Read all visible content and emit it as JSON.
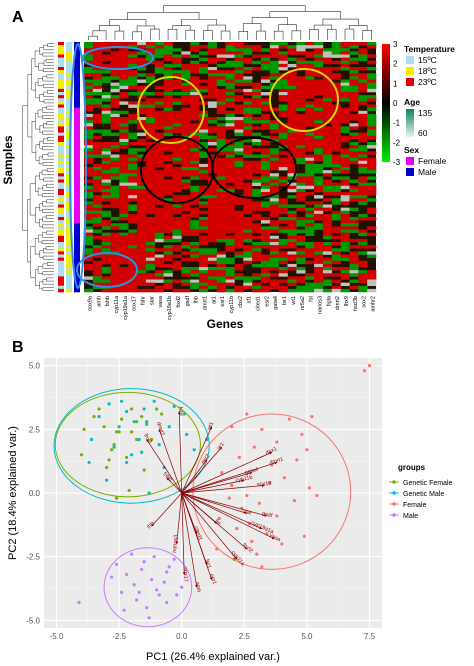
{
  "panel_a": {
    "label": "A",
    "y_label": "Samples",
    "x_label": "Genes",
    "genes": [
      "sox9a",
      "amh",
      "fshb",
      "cyp11a",
      "cyp19a1a",
      "sox17",
      "fshr",
      "star",
      "vasa",
      "cyp19a1b",
      "foxl2",
      "gsdf",
      "lhb",
      "dmrt1",
      "ar1",
      "esr1",
      "cyp11b",
      "cbx2",
      "sf1",
      "cited1",
      "esr2",
      "gata4",
      "fsr1",
      "wt1",
      "nr5a2",
      "fst",
      "nanos3",
      "figla",
      "dmrt2",
      "lhx9",
      "hsd3b",
      "sox2",
      "amhr2"
    ],
    "colorbar": {
      "ticks": [
        "3",
        "2",
        "1",
        "0",
        "-1",
        "-2",
        "-3"
      ],
      "colors": [
        "#ff0000",
        "#000000",
        "#00ee00"
      ]
    },
    "legends": {
      "temperature": {
        "title": "Temperature",
        "items": [
          {
            "label": "15ºC",
            "color": "#a9dff0"
          },
          {
            "label": "18ºC",
            "color": "#f2ee00"
          },
          {
            "label": "23ºC",
            "color": "#e80000"
          }
        ]
      },
      "age": {
        "title": "Age",
        "ticks": [
          "135",
          "60"
        ],
        "colors": [
          "#14805e",
          "#e3f3ec"
        ]
      },
      "sex": {
        "title": "Sex",
        "items": [
          {
            "label": "Female",
            "color": "#e800ee"
          },
          {
            "label": "Male",
            "color": "#0000cc"
          }
        ]
      }
    },
    "row_bar_colors": {
      "temperature": [
        "#a9dff0",
        "#f2ee00",
        "#e80000"
      ],
      "sex": [
        "#e800ee",
        "#0000cc"
      ]
    },
    "heat_colors": {
      "high": "#d20000",
      "mid": "#221100",
      "low": "#009900",
      "nodata": "#c0c0c0"
    },
    "highlight_colors": {
      "blue": "#2f8fe6",
      "yellow": "#e2d400",
      "black": "#000000"
    }
  },
  "panel_b": {
    "label": "B",
    "chart_data": {
      "type": "scatter",
      "xlabel": "PC1 (26.4% explained var.)",
      "ylabel": "PC2 (18.4% explained var.)",
      "xlim": [
        -5.5,
        8.0
      ],
      "ylim": [
        -5.3,
        5.3
      ],
      "x_ticks": [
        "-5.0",
        "-2.5",
        "0.0",
        "2.5",
        "5.0",
        "7.5"
      ],
      "y_ticks": [
        "5.0",
        "2.5",
        "0.0",
        "-2.5",
        "-5.0"
      ],
      "grid": true,
      "legend_position": "right",
      "legend_title": "groups",
      "series": [
        {
          "name": "Genetic Female",
          "color": "#7cae00",
          "x": [
            -3.5,
            -3.1,
            -2.9,
            -2.6,
            -2.4,
            -2.2,
            -2.0,
            -1.8,
            -1.6,
            -1.4,
            -1.2,
            -2.8,
            -2.5,
            -3.3,
            -1.0,
            -3.9,
            -2.1,
            -2.7,
            -0.8,
            -4.0,
            -2.0,
            -2.6,
            -1.5,
            -1.8,
            -3.0,
            2.1
          ],
          "y": [
            3.0,
            2.6,
            1.3,
            2.4,
            2.9,
            1.4,
            2.4,
            2.8,
            3.0,
            2.7,
            2.1,
            1.7,
            2.4,
            3.3,
            3.3,
            2.5,
            0.1,
            1.9,
            3.1,
            1.5,
            3.3,
            -0.2,
            0.9,
            2.1,
            1.0,
            -2.6
          ]
        },
        {
          "name": "Genetic Male",
          "color": "#00bfc4",
          "x": [
            -3.6,
            -3.3,
            -2.9,
            -2.5,
            -2.2,
            -2.0,
            -1.7,
            -1.4,
            -1.1,
            -0.9,
            -0.5,
            0.2,
            0.5,
            1.0,
            -3.0,
            -2.7,
            -1.5,
            -1.9,
            -3.7,
            -2.4,
            -0.7,
            0.1,
            -1.3,
            -2.2,
            -1.6,
            -0.3
          ],
          "y": [
            2.1,
            3.0,
            3.5,
            2.6,
            3.2,
            1.5,
            2.1,
            2.8,
            3.6,
            1.9,
            2.6,
            2.3,
            1.7,
            2.1,
            0.5,
            1.8,
            3.3,
            2.8,
            1.2,
            3.6,
            1.0,
            3.1,
            0.0,
            1.2,
            1.6,
            3.4
          ]
        },
        {
          "name": "Female",
          "color": "#f8766d",
          "x": [
            2.0,
            2.6,
            3.2,
            3.8,
            4.3,
            4.8,
            5.2,
            1.6,
            2.3,
            2.9,
            3.6,
            4.1,
            4.6,
            5.1,
            1.9,
            2.4,
            3.1,
            3.8,
            4.5,
            5.4,
            2.2,
            2.8,
            3.4,
            4.0,
            1.4,
            3.0,
            4.9,
            2.6,
            3.5,
            5.0,
            1.5,
            2.0,
            2.7,
            7.5,
            7.3,
            3.2
          ],
          "y": [
            2.6,
            3.1,
            2.5,
            2.0,
            2.9,
            2.3,
            3.0,
            0.8,
            1.4,
            1.8,
            1.1,
            0.6,
            1.3,
            0.2,
            -0.2,
            -0.6,
            -0.4,
            -0.9,
            -0.3,
            -0.1,
            -1.4,
            -1.9,
            -1.6,
            -2.0,
            -2.2,
            -2.4,
            -1.7,
            -0.1,
            0.4,
            1.7,
            -1.0,
            0.3,
            -1.2,
            5.0,
            4.8,
            -2.9
          ]
        },
        {
          "name": "Male",
          "color": "#c77cff",
          "x": [
            -2.6,
            -2.2,
            -1.9,
            -1.5,
            -1.2,
            -0.9,
            -0.6,
            -0.3,
            0.0,
            -2.4,
            -1.8,
            -1.4,
            -1.0,
            -0.6,
            -0.2,
            -2.8,
            -2.0,
            -1.6,
            -1.1,
            -0.7,
            -4.1,
            -2.3,
            -1.3,
            -0.5,
            -1.7
          ],
          "y": [
            -2.8,
            -3.2,
            -3.6,
            -2.7,
            -3.4,
            -4.0,
            -3.1,
            -2.6,
            -3.7,
            -3.9,
            -4.2,
            -4.5,
            -3.8,
            -4.3,
            -4.0,
            -3.3,
            -2.4,
            -3.0,
            -2.5,
            -3.5,
            -4.3,
            -4.6,
            -4.9,
            -2.9,
            -3.9
          ]
        }
      ],
      "ellipses": [
        {
          "series": "Genetic Female",
          "cx": -2.15,
          "cy": 1.9,
          "rx": 2.9,
          "ry": 2.05,
          "color": "#7cae00"
        },
        {
          "series": "Genetic Male",
          "cx": -2.0,
          "cy": 1.85,
          "rx": 3.1,
          "ry": 2.25,
          "color": "#00bfc4"
        },
        {
          "series": "Female",
          "cx": 3.6,
          "cy": 0.05,
          "rx": 3.15,
          "ry": 3.05,
          "color": "#f8766d"
        },
        {
          "series": "Male",
          "cx": -1.35,
          "cy": -3.7,
          "rx": 1.75,
          "ry": 1.55,
          "color": "#c77cff"
        }
      ],
      "loadings": [
        {
          "label": "fshr",
          "x": -0.1,
          "y": 3.2
        },
        {
          "label": "dmrt2",
          "x": -0.9,
          "y": 2.5
        },
        {
          "label": "lhx9",
          "x": -1.4,
          "y": 2.1
        },
        {
          "label": "fshb",
          "x": -0.6,
          "y": 0.6
        },
        {
          "label": "wt1",
          "x": 1.2,
          "y": 2.6
        },
        {
          "label": "ar1",
          "x": 1.6,
          "y": 1.8
        },
        {
          "label": "esr2",
          "x": 1.0,
          "y": 1.3
        },
        {
          "label": "dax1",
          "x": 3.6,
          "y": 1.6
        },
        {
          "label": "dmrt1",
          "x": 3.8,
          "y": 1.2
        },
        {
          "label": "gata4",
          "x": 2.8,
          "y": 0.8
        },
        {
          "label": "cyp11b",
          "x": 2.5,
          "y": 0.5
        },
        {
          "label": "sox19",
          "x": 3.3,
          "y": 0.3
        },
        {
          "label": "star",
          "x": 2.6,
          "y": -0.8
        },
        {
          "label": "gsdf",
          "x": 3.4,
          "y": -0.9
        },
        {
          "label": "cyp19a1a",
          "x": 3.2,
          "y": -1.4
        },
        {
          "label": "vasa",
          "x": 3.7,
          "y": -1.8
        },
        {
          "label": "foxl2",
          "x": 2.6,
          "y": -2.2
        },
        {
          "label": "fst",
          "x": 1.4,
          "y": -1.2
        },
        {
          "label": "cyp11a",
          "x": 2.2,
          "y": -2.6
        },
        {
          "label": "fsr1",
          "x": 1.0,
          "y": -2.8
        },
        {
          "label": "cited1",
          "x": 0.6,
          "y": -1.6
        },
        {
          "label": "sox17",
          "x": 0.1,
          "y": -3.2
        },
        {
          "label": "amh",
          "x": 0.6,
          "y": -3.7
        },
        {
          "label": "nanos3",
          "x": -0.2,
          "y": -2.0
        },
        {
          "label": "lhb",
          "x": -1.2,
          "y": -1.3
        },
        {
          "label": "esr1",
          "x": 1.2,
          "y": -3.4
        }
      ],
      "loading_color": "#8b0000"
    }
  }
}
